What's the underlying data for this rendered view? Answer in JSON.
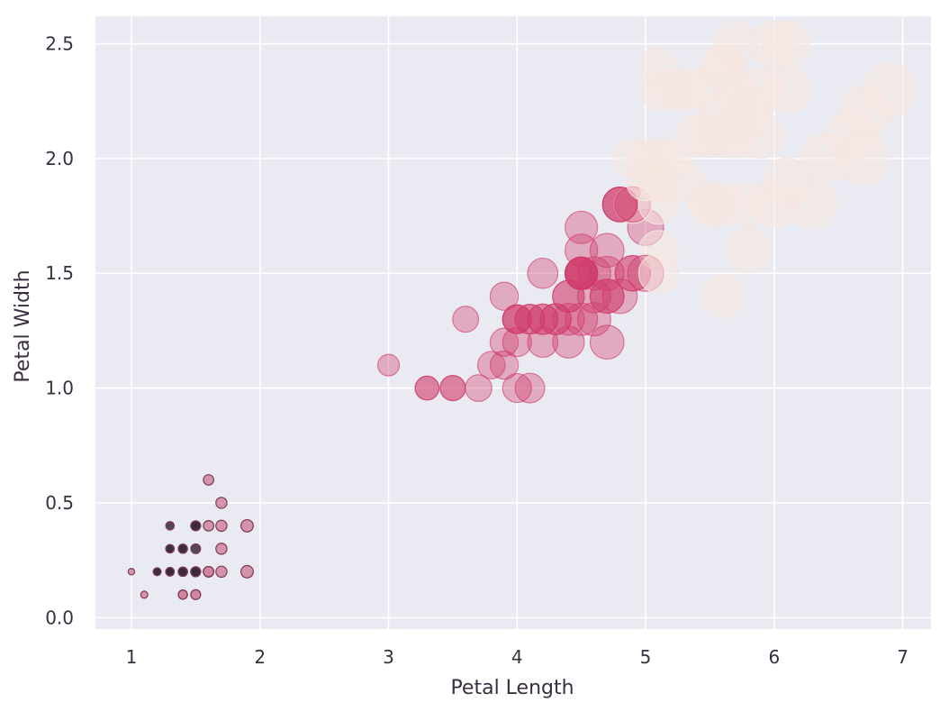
{
  "chart_data": {
    "type": "scatter",
    "title": "",
    "xlabel": "Petal Length",
    "ylabel": "Petal Width",
    "xlim": [
      0.72,
      7.22
    ],
    "ylim": [
      -0.05,
      2.62
    ],
    "xticks": [
      1,
      2,
      3,
      4,
      5,
      6,
      7
    ],
    "xtick_labels": [
      "1",
      "2",
      "3",
      "4",
      "5",
      "6",
      "7"
    ],
    "yticks": [
      0.0,
      0.5,
      1.0,
      1.5,
      2.0,
      2.5
    ],
    "ytick_labels": [
      "0.0",
      "0.5",
      "1.0",
      "1.5",
      "2.0",
      "2.5"
    ],
    "grid": true,
    "legend": "none",
    "colors": {
      "background": "#eaeaf2",
      "grid": "#ffffff",
      "setosa_dark": "#3a2c3c",
      "setosa_pink": "#d0849e",
      "versicolor": "#cf3a6a",
      "virginica": "#f5e6e0"
    },
    "series": [
      {
        "values_semantics": "[petal_length, petal_width, sepal_length]",
        "points": [
          [
            1.4,
            0.2,
            5.1
          ],
          [
            1.4,
            0.2,
            4.9
          ],
          [
            1.3,
            0.2,
            4.7
          ],
          [
            1.5,
            0.2,
            4.6
          ],
          [
            1.4,
            0.2,
            5.0
          ],
          [
            1.7,
            0.4,
            5.4
          ],
          [
            1.4,
            0.3,
            4.6
          ],
          [
            1.5,
            0.2,
            5.0
          ],
          [
            1.4,
            0.2,
            4.4
          ],
          [
            1.5,
            0.1,
            4.9
          ],
          [
            1.5,
            0.2,
            5.4
          ],
          [
            1.6,
            0.2,
            4.8
          ],
          [
            1.4,
            0.1,
            4.8
          ],
          [
            1.1,
            0.1,
            4.3
          ],
          [
            1.2,
            0.2,
            5.8
          ],
          [
            1.5,
            0.4,
            5.7
          ],
          [
            1.3,
            0.4,
            5.4
          ],
          [
            1.4,
            0.3,
            5.1
          ],
          [
            1.7,
            0.3,
            5.7
          ],
          [
            1.5,
            0.3,
            5.1
          ],
          [
            1.7,
            0.2,
            5.4
          ],
          [
            1.5,
            0.4,
            5.1
          ],
          [
            1.0,
            0.2,
            4.6
          ],
          [
            1.7,
            0.5,
            5.1
          ],
          [
            1.9,
            0.2,
            4.8
          ],
          [
            1.6,
            0.2,
            5.0
          ],
          [
            1.6,
            0.4,
            5.0
          ],
          [
            1.5,
            0.2,
            5.2
          ],
          [
            1.4,
            0.2,
            5.2
          ],
          [
            1.6,
            0.2,
            4.7
          ],
          [
            1.6,
            0.2,
            4.8
          ],
          [
            1.5,
            0.4,
            5.4
          ],
          [
            1.5,
            0.1,
            5.2
          ],
          [
            1.4,
            0.2,
            5.5
          ],
          [
            1.5,
            0.2,
            4.9
          ],
          [
            1.2,
            0.2,
            5.0
          ],
          [
            1.3,
            0.2,
            5.5
          ],
          [
            1.4,
            0.1,
            4.9
          ],
          [
            1.3,
            0.2,
            4.4
          ],
          [
            1.5,
            0.2,
            5.1
          ],
          [
            1.3,
            0.3,
            5.0
          ],
          [
            1.3,
            0.3,
            4.5
          ],
          [
            1.3,
            0.2,
            4.4
          ],
          [
            1.6,
            0.6,
            5.0
          ],
          [
            1.9,
            0.4,
            5.1
          ],
          [
            1.4,
            0.3,
            4.8
          ],
          [
            1.6,
            0.2,
            5.1
          ],
          [
            1.4,
            0.2,
            4.6
          ],
          [
            1.5,
            0.2,
            5.3
          ],
          [
            1.4,
            0.2,
            5.0
          ],
          [
            4.7,
            1.4,
            7.0
          ],
          [
            4.5,
            1.5,
            6.4
          ],
          [
            4.9,
            1.5,
            6.9
          ],
          [
            4.0,
            1.3,
            5.5
          ],
          [
            4.6,
            1.5,
            6.5
          ],
          [
            4.5,
            1.3,
            5.7
          ],
          [
            4.7,
            1.6,
            6.3
          ],
          [
            3.3,
            1.0,
            4.9
          ],
          [
            4.6,
            1.3,
            6.6
          ],
          [
            3.9,
            1.4,
            5.2
          ],
          [
            3.5,
            1.0,
            5.0
          ],
          [
            4.2,
            1.5,
            5.9
          ],
          [
            4.0,
            1.0,
            6.0
          ],
          [
            4.7,
            1.4,
            6.1
          ],
          [
            3.6,
            1.3,
            5.6
          ],
          [
            4.4,
            1.4,
            6.7
          ],
          [
            4.5,
            1.5,
            5.6
          ],
          [
            4.1,
            1.0,
            5.8
          ],
          [
            4.5,
            1.5,
            6.2
          ],
          [
            3.9,
            1.1,
            5.6
          ],
          [
            4.8,
            1.8,
            5.9
          ],
          [
            4.0,
            1.3,
            6.1
          ],
          [
            4.9,
            1.5,
            6.3
          ],
          [
            4.7,
            1.2,
            6.1
          ],
          [
            4.3,
            1.3,
            6.4
          ],
          [
            4.4,
            1.4,
            6.6
          ],
          [
            4.8,
            1.4,
            6.8
          ],
          [
            5.0,
            1.7,
            6.7
          ],
          [
            4.5,
            1.5,
            6.0
          ],
          [
            3.5,
            1.0,
            5.7
          ],
          [
            3.8,
            1.1,
            5.5
          ],
          [
            3.7,
            1.0,
            5.5
          ],
          [
            3.9,
            1.2,
            5.8
          ],
          [
            5.1,
            1.6,
            6.0
          ],
          [
            4.5,
            1.5,
            5.4
          ],
          [
            4.5,
            1.6,
            6.0
          ],
          [
            4.7,
            1.5,
            6.7
          ],
          [
            4.4,
            1.3,
            6.3
          ],
          [
            4.1,
            1.3,
            5.6
          ],
          [
            4.0,
            1.3,
            5.5
          ],
          [
            4.4,
            1.2,
            5.5
          ],
          [
            4.6,
            1.4,
            6.1
          ],
          [
            4.0,
            1.2,
            5.8
          ],
          [
            3.3,
            1.0,
            5.0
          ],
          [
            4.2,
            1.3,
            5.6
          ],
          [
            4.2,
            1.2,
            5.7
          ],
          [
            4.2,
            1.3,
            5.7
          ],
          [
            4.3,
            1.3,
            6.2
          ],
          [
            3.0,
            1.1,
            5.1
          ],
          [
            4.1,
            1.3,
            5.7
          ],
          [
            6.0,
            2.5,
            6.3
          ],
          [
            5.1,
            1.9,
            5.8
          ],
          [
            5.9,
            2.1,
            7.1
          ],
          [
            5.6,
            1.8,
            6.3
          ],
          [
            5.8,
            2.2,
            6.5
          ],
          [
            6.6,
            2.1,
            7.6
          ],
          [
            4.5,
            1.7,
            4.9
          ],
          [
            6.3,
            1.8,
            7.3
          ],
          [
            5.8,
            1.8,
            6.7
          ],
          [
            6.1,
            2.5,
            7.2
          ],
          [
            5.1,
            2.0,
            6.5
          ],
          [
            5.3,
            1.9,
            6.4
          ],
          [
            5.5,
            2.1,
            6.8
          ],
          [
            5.0,
            2.0,
            5.7
          ],
          [
            5.1,
            2.4,
            5.8
          ],
          [
            5.3,
            2.3,
            6.4
          ],
          [
            5.5,
            1.8,
            6.5
          ],
          [
            6.7,
            2.2,
            7.7
          ],
          [
            6.9,
            2.3,
            7.7
          ],
          [
            5.0,
            1.5,
            6.0
          ],
          [
            5.7,
            2.3,
            6.9
          ],
          [
            4.9,
            2.0,
            5.6
          ],
          [
            6.7,
            2.0,
            7.7
          ],
          [
            4.9,
            1.8,
            6.3
          ],
          [
            5.7,
            2.1,
            6.7
          ],
          [
            6.0,
            1.8,
            7.2
          ],
          [
            4.8,
            1.8,
            6.2
          ],
          [
            4.9,
            1.8,
            6.1
          ],
          [
            5.6,
            2.1,
            6.4
          ],
          [
            5.8,
            1.6,
            7.2
          ],
          [
            6.1,
            1.9,
            7.4
          ],
          [
            6.4,
            2.0,
            7.9
          ],
          [
            5.6,
            2.2,
            6.4
          ],
          [
            5.1,
            1.5,
            6.3
          ],
          [
            5.6,
            1.4,
            6.1
          ],
          [
            6.1,
            2.3,
            7.7
          ],
          [
            5.6,
            2.4,
            6.3
          ],
          [
            5.5,
            1.8,
            6.4
          ],
          [
            4.8,
            1.8,
            6.0
          ],
          [
            5.4,
            2.1,
            6.9
          ],
          [
            5.6,
            2.4,
            6.7
          ],
          [
            5.1,
            2.3,
            6.9
          ],
          [
            5.1,
            1.9,
            5.8
          ],
          [
            5.9,
            2.3,
            6.8
          ],
          [
            5.7,
            2.5,
            6.7
          ],
          [
            5.2,
            2.3,
            6.7
          ],
          [
            5.0,
            1.9,
            6.3
          ],
          [
            5.2,
            2.0,
            6.5
          ],
          [
            5.4,
            2.3,
            6.2
          ],
          [
            5.1,
            1.8,
            5.9
          ]
        ]
      }
    ]
  }
}
